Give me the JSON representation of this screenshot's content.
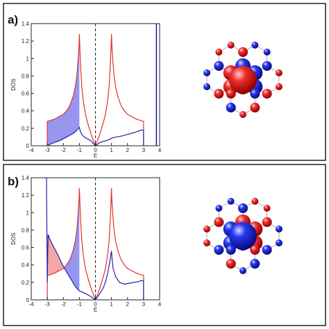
{
  "panels": [
    {
      "label": "a)",
      "chart_data": {
        "type": "line",
        "xlabel": "E",
        "ylabel": "DOS",
        "xlim": [
          -4,
          4
        ],
        "ylim": [
          0,
          1.4
        ],
        "xticks": [
          -4,
          -3,
          -2,
          -1,
          0,
          1,
          2,
          3,
          4
        ],
        "yticks": [
          0,
          0.2,
          0.4,
          0.6,
          0.8,
          1,
          1.2,
          1.4
        ],
        "ytick_labels": [
          "0",
          "0.2",
          "0.4",
          "0.6",
          "0.8",
          "1",
          "1.2",
          "1.4"
        ],
        "grid": false,
        "fermi_level_line": 0,
        "series": [
          {
            "color": "#e03030",
            "x": [
              -3,
              -3,
              -2.8,
              -2.5,
              -2.2,
              -2.0,
              -1.8,
              -1.6,
              -1.4,
              -1.25,
              -1.15,
              -1.08,
              -1.03,
              -1.0,
              -0.97,
              -0.92,
              -0.85,
              -0.75,
              -0.6,
              -0.45,
              -0.3,
              -0.15,
              0,
              0.15,
              0.3,
              0.45,
              0.6,
              0.75,
              0.85,
              0.92,
              0.97,
              1.0,
              1.03,
              1.08,
              1.15,
              1.25,
              1.4,
              1.6,
              1.8,
              2.0,
              2.2,
              2.5,
              2.8,
              3,
              3
            ],
            "y": [
              0,
              0.28,
              0.29,
              0.31,
              0.34,
              0.36,
              0.4,
              0.46,
              0.56,
              0.68,
              0.82,
              0.98,
              1.12,
              1.28,
              1.12,
              0.9,
              0.68,
              0.5,
              0.34,
              0.24,
              0.15,
              0.07,
              0,
              0.07,
              0.15,
              0.24,
              0.34,
              0.5,
              0.68,
              0.9,
              1.12,
              1.28,
              1.12,
              0.98,
              0.82,
              0.68,
              0.56,
              0.46,
              0.4,
              0.36,
              0.34,
              0.31,
              0.29,
              0.28,
              0
            ]
          },
          {
            "color": "#2020b0",
            "x": [
              -3,
              -2.8,
              -2.5,
              -2.2,
              -2.0,
              -1.8,
              -1.6,
              -1.4,
              -1.25,
              -1.15,
              -1.05,
              -1.0,
              -0.95,
              -0.85,
              -0.7,
              -0.5,
              -0.3,
              -0.15,
              0,
              0.15,
              0.3,
              0.5,
              0.7,
              0.85,
              0.95,
              1.0,
              1.05,
              1.15,
              1.3,
              1.6,
              2.0,
              2.4,
              2.7,
              2.85,
              2.95,
              3.0,
              3.0
            ],
            "y": [
              0,
              0.02,
              0.04,
              0.06,
              0.08,
              0.1,
              0.12,
              0.14,
              0.16,
              0.18,
              0.2,
              0.21,
              0.17,
              0.13,
              0.1,
              0.08,
              0.06,
              0.03,
              0,
              0.02,
              0.04,
              0.05,
              0.06,
              0.07,
              0.08,
              0.085,
              0.09,
              0.095,
              0.1,
              0.11,
              0.13,
              0.15,
              0.17,
              0.18,
              0.18,
              0.17,
              0
            ]
          }
        ],
        "vertical_line": {
          "x": 3.8,
          "color": "#2020b0"
        },
        "shaded_region": {
          "color": "#6a6ae8",
          "x_from": -3,
          "x_to": -1,
          "between": "blue-and-red"
        }
      },
      "lattice_colors": {
        "positive": "#e02020",
        "negative": "#2030e0"
      }
    },
    {
      "label": "b)",
      "chart_data": {
        "type": "line",
        "xlabel": "E",
        "ylabel": "DOS",
        "xlim": [
          -4,
          4
        ],
        "ylim": [
          0,
          1.4
        ],
        "xticks": [
          -4,
          -3,
          -2,
          -1,
          0,
          1,
          2,
          3,
          4
        ],
        "yticks": [
          0,
          0.2,
          0.4,
          0.6,
          0.8,
          1,
          1.2,
          1.4
        ],
        "ytick_labels": [
          "0",
          "0.2",
          "0.4",
          "0.6",
          "0.8",
          "1",
          "1.2",
          "1.4"
        ],
        "grid": false,
        "fermi_level_line": 0,
        "series": [
          {
            "color": "#e03030",
            "x": [
              -3,
              -3,
              -2.8,
              -2.5,
              -2.2,
              -2.0,
              -1.8,
              -1.6,
              -1.4,
              -1.25,
              -1.15,
              -1.08,
              -1.03,
              -1.0,
              -0.97,
              -0.92,
              -0.85,
              -0.75,
              -0.6,
              -0.45,
              -0.3,
              -0.15,
              0,
              0.15,
              0.3,
              0.45,
              0.6,
              0.75,
              0.85,
              0.92,
              0.97,
              1.0,
              1.03,
              1.08,
              1.15,
              1.25,
              1.4,
              1.6,
              1.8,
              2.0,
              2.2,
              2.5,
              2.8,
              3,
              3
            ],
            "y": [
              0,
              0.28,
              0.29,
              0.31,
              0.34,
              0.36,
              0.4,
              0.46,
              0.56,
              0.68,
              0.82,
              0.98,
              1.12,
              1.28,
              1.12,
              0.9,
              0.68,
              0.5,
              0.34,
              0.24,
              0.15,
              0.07,
              0,
              0.07,
              0.15,
              0.24,
              0.34,
              0.5,
              0.68,
              0.9,
              1.12,
              1.28,
              1.12,
              0.98,
              0.82,
              0.68,
              0.56,
              0.46,
              0.4,
              0.36,
              0.34,
              0.31,
              0.29,
              0.28,
              0
            ]
          },
          {
            "color": "#2020b0",
            "x": [
              -3.05,
              -3.0,
              -2.95,
              -2.85,
              -2.7,
              -2.5,
              -2.3,
              -2.1,
              -1.9,
              -1.7,
              -1.5,
              -1.35,
              -1.2,
              -1.1,
              -1.03,
              -1.0,
              -0.95,
              -0.85,
              -0.7,
              -0.5,
              -0.3,
              -0.15,
              0,
              0.15,
              0.3,
              0.5,
              0.65,
              0.8,
              0.9,
              0.96,
              1.0,
              1.03,
              1.1,
              1.25,
              1.5,
              1.8,
              2.1,
              2.4,
              2.7,
              2.85,
              2.95,
              3.0,
              3.0
            ],
            "y": [
              1.4,
              0.2,
              0.75,
              0.7,
              0.64,
              0.57,
              0.5,
              0.42,
              0.35,
              0.29,
              0.23,
              0.18,
              0.14,
              0.12,
              0.11,
              0.1,
              0.1,
              0.09,
              0.08,
              0.06,
              0.04,
              0.02,
              0,
              0.04,
              0.08,
              0.14,
              0.22,
              0.34,
              0.44,
              0.52,
              0.56,
              0.48,
              0.36,
              0.27,
              0.2,
              0.18,
              0.19,
              0.2,
              0.21,
              0.22,
              0.22,
              0.21,
              0
            ]
          }
        ],
        "shaded_regions": [
          {
            "color": "#f08080",
            "x_from": -2.95,
            "x_to": -1.9,
            "between": "blue-and-red"
          },
          {
            "color": "#6a6ae8",
            "x_from": -1.9,
            "x_to": -1,
            "between": "red-and-blue"
          }
        ]
      },
      "lattice_colors": {
        "positive": "#e02020",
        "negative": "#2030e0"
      }
    }
  ]
}
